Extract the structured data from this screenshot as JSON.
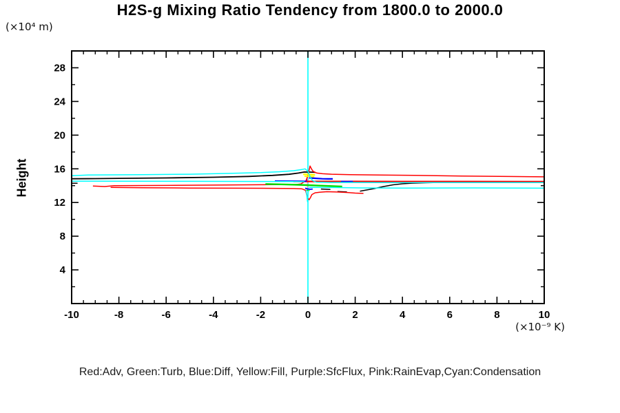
{
  "title": "H2S-g Mixing Ratio Tendency from 1800.0 to 2000.0",
  "y_axis": {
    "label": "Height",
    "unit": "(×10⁴ m)"
  },
  "x_axis": {
    "unit": "(×10⁻⁹ K)"
  },
  "legend_text": "Red:Adv, Green:Turb, Blue:Diff, Yellow:Fill, Purple:SfcFlux, Pink:RainEvap,Cyan:Condensation",
  "colors": {
    "background": "#ffffff",
    "frame": "#000000",
    "zero_line": "#00ffff",
    "adv": "#ff0000",
    "turb": "#00dd00",
    "diff": "#0000ff",
    "fill": "#ffff00",
    "sfcflux": "#9900cc",
    "rainevap": "#ff9bb0",
    "condensation": "#00ffff",
    "unlabeled_total": "#000000"
  },
  "chart_data": {
    "type": "line",
    "title": "H2S-g Mixing Ratio Tendency from 1800.0 to 2000.0",
    "xlabel": "(×10⁻⁹ K)",
    "ylabel": "Height (×10⁴ m)",
    "xlim": [
      -10,
      10
    ],
    "ylim": [
      0,
      30
    ],
    "x_ticks": [
      -10,
      -8,
      -6,
      -4,
      -2,
      0,
      2,
      4,
      6,
      8,
      10
    ],
    "x_minor_step": 0.5,
    "y_ticks": [
      4,
      8,
      12,
      16,
      20,
      24,
      28
    ],
    "y_minor_step": 2,
    "grid": false,
    "legend_position": "bottom-text-line",
    "zero_line": {
      "x": 0,
      "color": "#00ffff"
    },
    "series": [
      {
        "name": "RainEvap",
        "color": "#ff9bb0",
        "segments": [
          {
            "w": 1.5,
            "pts": [
              [
                -0.02,
                13.3
              ],
              [
                -0.02,
                15.05
              ]
            ]
          }
        ]
      },
      {
        "name": "SfcFlux",
        "color": "#9900cc",
        "segments": [
          {
            "w": 1.5,
            "pts": [
              [
                -0.05,
                14.5
              ],
              [
                -0.05,
                14.78
              ]
            ]
          }
        ]
      },
      {
        "name": "Black",
        "color": "#000000",
        "segments": [
          {
            "w": 1.8,
            "pts": [
              [
                -10,
                14.82
              ],
              [
                -9,
                14.84
              ],
              [
                -8,
                14.87
              ],
              [
                -6,
                14.92
              ],
              [
                -4,
                15.0
              ],
              [
                -2.5,
                15.1
              ],
              [
                -1.5,
                15.22
              ],
              [
                -0.8,
                15.35
              ],
              [
                -0.4,
                15.5
              ],
              [
                -0.15,
                15.62
              ],
              [
                0.1,
                15.61
              ],
              [
                0.32,
                15.58
              ]
            ]
          },
          {
            "w": 1.5,
            "pts": [
              [
                2.2,
                13.35
              ],
              [
                2.5,
                13.5
              ],
              [
                2.8,
                13.65
              ],
              [
                3.2,
                13.9
              ],
              [
                3.6,
                14.1
              ],
              [
                4.0,
                14.22
              ],
              [
                4.4,
                14.3
              ],
              [
                5.0,
                14.35
              ],
              [
                6.0,
                14.4
              ],
              [
                7.0,
                14.42
              ],
              [
                8.5,
                14.44
              ],
              [
                10,
                14.45
              ]
            ]
          },
          {
            "w": 1.5,
            "pts": [
              [
                -10,
                14.29
              ],
              [
                -9.75,
                14.29
              ]
            ]
          },
          {
            "w": 1.5,
            "pts": [
              [
                0.55,
                13.6
              ],
              [
                0.95,
                13.55
              ]
            ]
          },
          {
            "w": 1.5,
            "pts": [
              [
                1.25,
                13.3
              ],
              [
                1.65,
                13.25
              ]
            ]
          }
        ]
      },
      {
        "name": "Adv",
        "color": "#ff0000",
        "segments": [
          {
            "w": 1.5,
            "pts": [
              [
                -9.1,
                13.96
              ],
              [
                -8.6,
                13.9
              ],
              [
                -8.2,
                14.0
              ],
              [
                -6,
                14.03
              ],
              [
                -4,
                14.07
              ],
              [
                -2,
                14.11
              ],
              [
                -1,
                14.14
              ],
              [
                -0.55,
                14.12
              ],
              [
                -0.3,
                14.2
              ],
              [
                -0.18,
                14.42
              ],
              [
                -0.08,
                14.6
              ],
              [
                -0.03,
                15.0
              ],
              [
                0.03,
                15.6
              ],
              [
                0.09,
                16.33
              ],
              [
                0.15,
                16.0
              ],
              [
                0.22,
                15.7
              ],
              [
                0.38,
                15.5
              ],
              [
                0.62,
                15.42
              ],
              [
                1.0,
                15.36
              ],
              [
                1.8,
                15.31
              ],
              [
                3.0,
                15.27
              ],
              [
                4.5,
                15.22
              ],
              [
                6.5,
                15.15
              ],
              [
                8.5,
                15.09
              ],
              [
                10,
                15.05
              ]
            ]
          },
          {
            "w": 2.2,
            "pts": [
              [
                -0.62,
                14.5
              ],
              [
                1,
                14.5
              ],
              [
                4,
                14.49
              ],
              [
                7,
                14.49
              ],
              [
                10,
                14.48
              ]
            ]
          },
          {
            "w": 1.5,
            "pts": [
              [
                -8.35,
                13.8
              ],
              [
                -7,
                13.76
              ],
              [
                -5,
                13.72
              ],
              [
                -3,
                13.7
              ],
              [
                -1.5,
                13.68
              ],
              [
                -0.6,
                13.66
              ],
              [
                -0.25,
                13.62
              ],
              [
                -0.1,
                13.45
              ],
              [
                -0.05,
                12.9
              ],
              [
                0,
                12.5
              ],
              [
                0.05,
                12.33
              ],
              [
                0.1,
                12.55
              ],
              [
                0.17,
                12.95
              ],
              [
                0.3,
                13.15
              ],
              [
                0.5,
                13.22
              ],
              [
                0.8,
                13.28
              ],
              [
                1.2,
                13.25
              ],
              [
                1.6,
                13.2
              ],
              [
                2.0,
                13.12
              ],
              [
                2.35,
                13.08
              ]
            ]
          }
        ]
      },
      {
        "name": "Turb",
        "color": "#00dd00",
        "segments": [
          {
            "w": 2.4,
            "pts": [
              [
                -1.8,
                14.2
              ],
              [
                -1.0,
                14.15
              ],
              [
                -0.4,
                14.1
              ],
              [
                0,
                14.06
              ],
              [
                0.5,
                14.0
              ],
              [
                1.0,
                13.95
              ],
              [
                1.45,
                13.9
              ]
            ]
          },
          {
            "w": 1.5,
            "pts": [
              [
                -0.06,
                13.47
              ],
              [
                0.07,
                13.43
              ]
            ]
          }
        ]
      },
      {
        "name": "Fill",
        "color": "#ffff00",
        "segments": [
          {
            "w": 2.4,
            "pts": [
              [
                -0.2,
                15.35
              ],
              [
                0,
                15.33
              ],
              [
                0.3,
                15.28
              ]
            ]
          },
          {
            "w": 1.8,
            "pts": [
              [
                -0.15,
                15.12
              ],
              [
                0.1,
                15.1
              ],
              [
                0.27,
                15.06
              ]
            ]
          }
        ]
      },
      {
        "name": "Diff",
        "color": "#0000ff",
        "segments": [
          {
            "w": 1.8,
            "pts": [
              [
                -1.4,
                14.56
              ],
              [
                -0.8,
                14.55
              ],
              [
                -0.3,
                14.53
              ],
              [
                -0.05,
                14.52
              ]
            ]
          },
          {
            "w": 2.2,
            "pts": [
              [
                0.05,
                14.92
              ],
              [
                0.3,
                14.88
              ],
              [
                0.6,
                14.82
              ],
              [
                0.85,
                14.8
              ],
              [
                1.05,
                14.8
              ]
            ]
          },
          {
            "w": 1.5,
            "pts": [
              [
                1.4,
                14.52
              ],
              [
                1.65,
                14.5
              ],
              [
                1.9,
                14.52
              ]
            ]
          },
          {
            "w": 1.8,
            "pts": [
              [
                -0.12,
                13.7
              ],
              [
                -0.02,
                13.62
              ],
              [
                0.1,
                13.57
              ],
              [
                0.2,
                13.6
              ]
            ]
          }
        ]
      },
      {
        "name": "Condensation",
        "color": "#00ffff",
        "segments": [
          {
            "w": 1.5,
            "pts": [
              [
                -10,
                15.18
              ],
              [
                -9.3,
                15.27
              ],
              [
                -7,
                15.31
              ],
              [
                -5,
                15.36
              ],
              [
                -3.5,
                15.45
              ],
              [
                -2,
                15.55
              ],
              [
                -1.2,
                15.65
              ],
              [
                -0.6,
                15.78
              ],
              [
                -0.25,
                15.92
              ],
              [
                -0.12,
                16.0
              ],
              [
                0,
                15.7
              ],
              [
                0.1,
                15.0
              ],
              [
                0.2,
                14.6
              ],
              [
                0.35,
                14.42
              ],
              [
                1,
                14.38
              ],
              [
                3,
                14.37
              ],
              [
                6,
                14.37
              ],
              [
                10,
                14.37
              ]
            ]
          },
          {
            "w": 1.5,
            "pts": [
              [
                -10,
                14.53
              ],
              [
                -5,
                14.52
              ],
              [
                -2,
                14.5
              ],
              [
                -0.5,
                14.49
              ],
              [
                -0.15,
                14.47
              ]
            ]
          },
          {
            "w": 1.5,
            "pts": [
              [
                0.05,
                13.8
              ],
              [
                1,
                13.78
              ],
              [
                2.3,
                13.73
              ],
              [
                4,
                13.72
              ],
              [
                7,
                13.73
              ],
              [
                10,
                13.7
              ]
            ]
          },
          {
            "w": 1.3,
            "pts": [
              [
                -0.08,
                13.5
              ],
              [
                -0.04,
                12.6
              ],
              [
                -0.02,
                12.1
              ],
              [
                0,
                12.9
              ],
              [
                0.02,
                13.45
              ]
            ]
          }
        ]
      }
    ]
  }
}
